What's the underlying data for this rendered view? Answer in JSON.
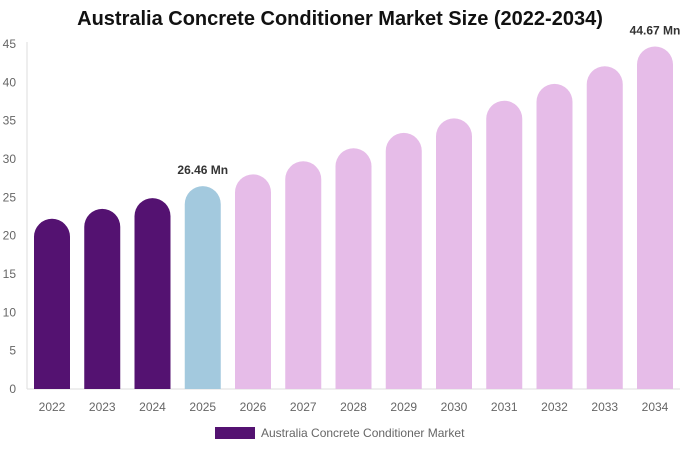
{
  "chart_data": {
    "type": "bar",
    "title": "Australia Concrete Conditioner Market Size (2022-2034)",
    "categories": [
      "2022",
      "2023",
      "2024",
      "2025",
      "2026",
      "2027",
      "2028",
      "2029",
      "2030",
      "2031",
      "2032",
      "2033",
      "2034"
    ],
    "series": [
      {
        "name": "Australia Concrete Conditioner Market",
        "values": [
          22.2,
          23.5,
          24.9,
          26.46,
          28.0,
          29.7,
          31.4,
          33.4,
          35.3,
          37.6,
          39.8,
          42.1,
          44.67
        ]
      }
    ],
    "ylim": [
      0,
      45
    ],
    "yticks": [
      0,
      5,
      10,
      15,
      20,
      25,
      30,
      35,
      40,
      45
    ],
    "grid": false,
    "legend": "bottom",
    "data_labels": {
      "3": "26.46 Mn",
      "12": "44.67 Mn"
    },
    "colors": {
      "historical": "#541271",
      "current": "#a3c9de",
      "forecast": "#e6bce8"
    }
  }
}
